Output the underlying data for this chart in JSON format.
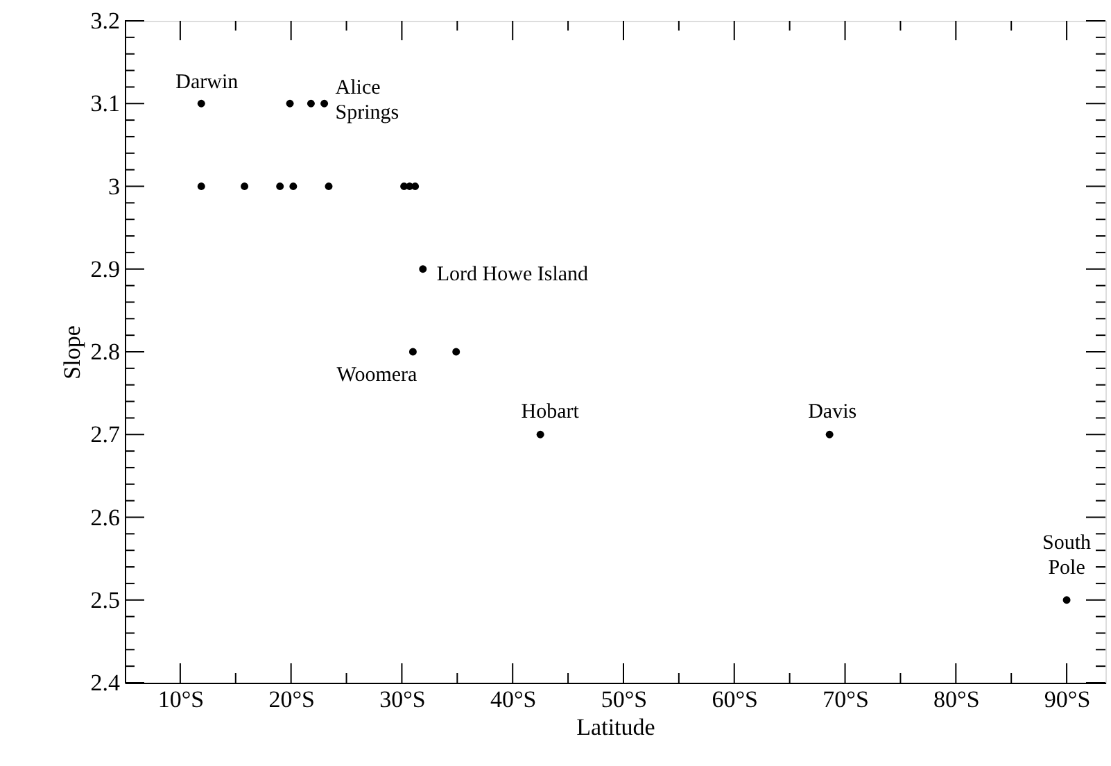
{
  "chart_data": {
    "type": "scatter",
    "xlabel": "Latitude",
    "ylabel": "Slope",
    "x": [
      11.9,
      19.9,
      21.8,
      23.0,
      11.9,
      15.8,
      19.0,
      20.2,
      23.4,
      30.2,
      30.7,
      31.2,
      31.9,
      31.0,
      34.9,
      42.5,
      68.6,
      90
    ],
    "values": [
      3.1,
      3.1,
      3.1,
      3.1,
      3,
      3,
      3,
      3,
      3,
      3,
      3,
      3,
      2.9,
      2.8,
      2.8,
      2.7,
      2.7,
      2.5
    ],
    "color": "#000000",
    "marker": "circle",
    "grid": false,
    "xlim": [
      5,
      93.5
    ],
    "xticks": [
      {
        "value": 10,
        "label": "10°S"
      },
      {
        "value": 15,
        "label": null
      },
      {
        "value": 20,
        "label": "20°S"
      },
      {
        "value": 25,
        "label": null
      },
      {
        "value": 30,
        "label": "30°S"
      },
      {
        "value": 35,
        "label": null
      },
      {
        "value": 40,
        "label": "40°S"
      },
      {
        "value": 45,
        "label": null
      },
      {
        "value": 50,
        "label": "50°S"
      },
      {
        "value": 55,
        "label": null
      },
      {
        "value": 60,
        "label": "60°S"
      },
      {
        "value": 65,
        "label": null
      },
      {
        "value": 70,
        "label": "70°S"
      },
      {
        "value": 75,
        "label": null
      },
      {
        "value": 80,
        "label": "80°S"
      },
      {
        "value": 85,
        "label": null
      },
      {
        "value": 90,
        "label": "90°S"
      }
    ],
    "ylim": [
      2.4,
      3.2
    ],
    "yticks": [
      2.4,
      {
        "value": 2.42,
        "label": null
      },
      {
        "value": 2.44,
        "label": null
      },
      {
        "value": 2.46,
        "label": null
      },
      {
        "value": 2.48,
        "label": null
      },
      2.5,
      {
        "value": 2.52,
        "label": null
      },
      {
        "value": 2.54,
        "label": null
      },
      {
        "value": 2.56,
        "label": null
      },
      {
        "value": 2.58,
        "label": null
      },
      2.6,
      {
        "value": 2.62,
        "label": null
      },
      {
        "value": 2.64,
        "label": null
      },
      {
        "value": 2.66,
        "label": null
      },
      {
        "value": 2.68,
        "label": null
      },
      2.7,
      {
        "value": 2.72,
        "label": null
      },
      {
        "value": 2.74,
        "label": null
      },
      {
        "value": 2.76,
        "label": null
      },
      {
        "value": 2.78,
        "label": null
      },
      2.8,
      {
        "value": 2.82,
        "label": null
      },
      {
        "value": 2.84,
        "label": null
      },
      {
        "value": 2.86,
        "label": null
      },
      {
        "value": 2.88,
        "label": null
      },
      2.9,
      {
        "value": 2.92,
        "label": null
      },
      {
        "value": 2.94,
        "label": null
      },
      {
        "value": 2.96,
        "label": null
      },
      {
        "value": 2.98,
        "label": null
      },
      3,
      {
        "value": 3.02,
        "label": null
      },
      {
        "value": 3.04,
        "label": null
      },
      {
        "value": 3.06,
        "label": null
      },
      {
        "value": 3.08,
        "label": null
      },
      3.1,
      {
        "value": 3.12,
        "label": null
      },
      {
        "value": 3.14,
        "label": null
      },
      {
        "value": 3.16,
        "label": null
      },
      {
        "value": 3.18,
        "label": null
      },
      3.2
    ],
    "annotations": [
      {
        "text": "Darwin",
        "x": 11.9,
        "y": 3.1
      },
      {
        "text": "Alice\nSprings",
        "x": 23.0,
        "y": 3.1
      },
      {
        "text": "Lord Howe Island",
        "x": 31.9,
        "y": 2.9
      },
      {
        "text": "Woomera",
        "x": 31.0,
        "y": 2.8
      },
      {
        "text": "Hobart",
        "x": 42.5,
        "y": 2.7
      },
      {
        "text": "Davis",
        "x": 68.6,
        "y": 2.7
      },
      {
        "text": "South\nPole",
        "x": 90,
        "y": 2.5
      }
    ]
  }
}
